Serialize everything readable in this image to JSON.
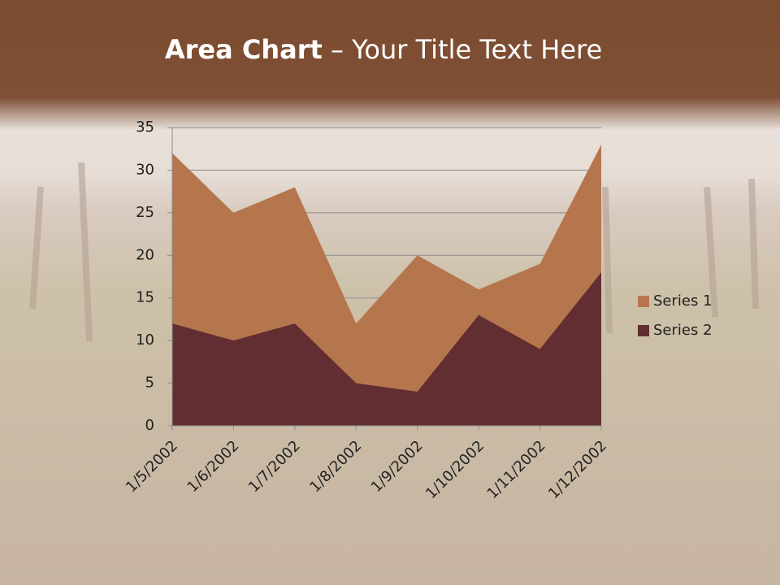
{
  "chart_data": {
    "type": "area",
    "title_parts": [
      "Area Chart",
      "– Your Title Text Here"
    ],
    "categories": [
      "1/5/2002",
      "1/6/2002",
      "1/7/2002",
      "1/8/2002",
      "1/9/2002",
      "1/10/2002",
      "1/11/2002",
      "1/12/2002"
    ],
    "series": [
      {
        "name": "Series 1",
        "color": "#b5764d",
        "values": [
          32,
          25,
          28,
          12,
          20,
          16,
          19,
          33
        ]
      },
      {
        "name": "Series 2",
        "color": "#632e31",
        "values": [
          12,
          10,
          12,
          5,
          4,
          13,
          9,
          18
        ]
      }
    ],
    "ylim": [
      0,
      35
    ],
    "yticks": [
      0,
      5,
      10,
      15,
      20,
      25,
      30,
      35
    ],
    "grid": true,
    "legend": "right"
  }
}
